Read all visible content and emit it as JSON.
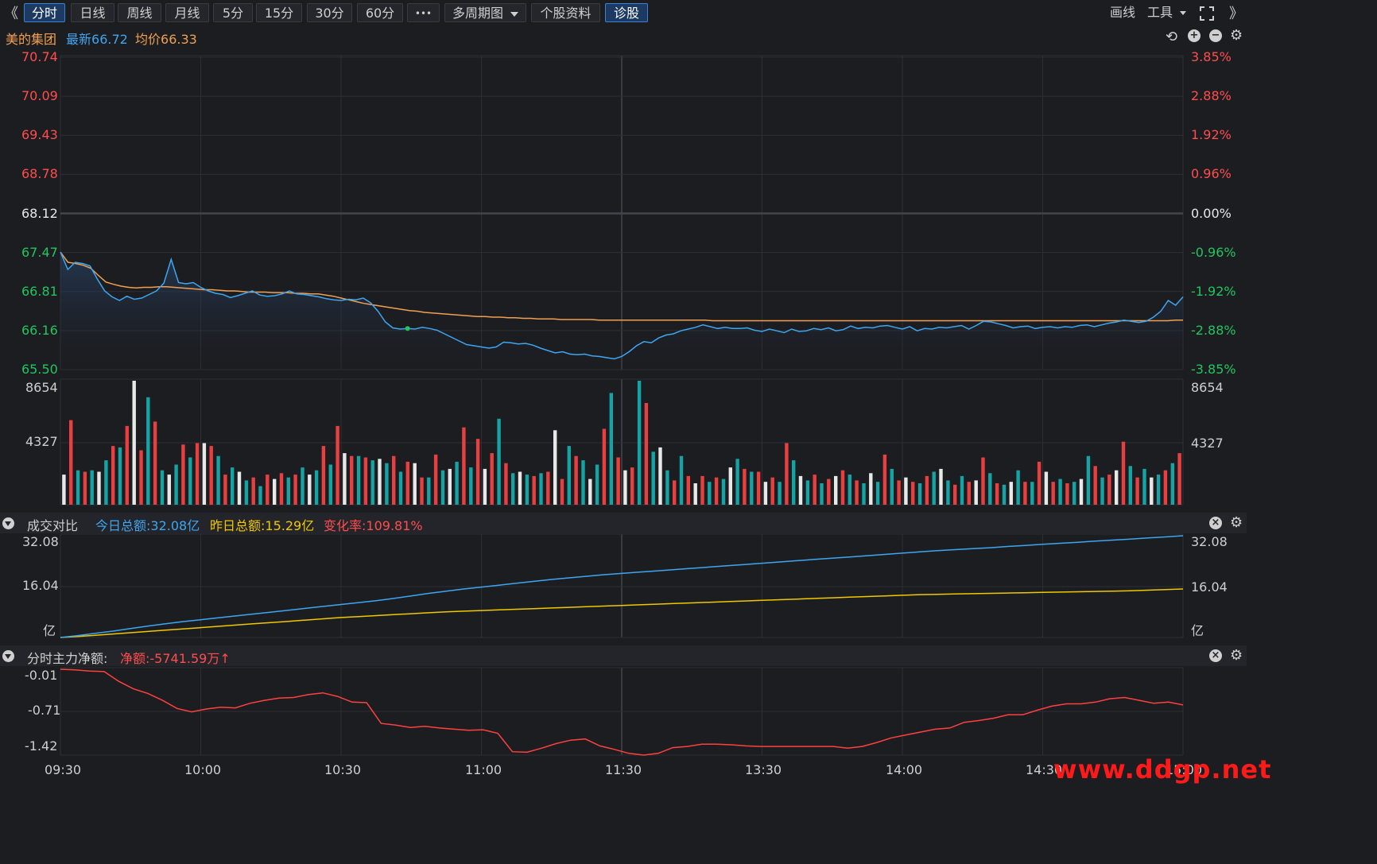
{
  "toolbar": {
    "collapse_left": "《",
    "expand_right": "》",
    "periods": [
      "分时",
      "日线",
      "周线",
      "月线",
      "5分",
      "15分",
      "30分",
      "60分"
    ],
    "active_period": "分时",
    "more": "•••",
    "multi_period": "多周期图",
    "stock_info": "个股资料",
    "diagnose": "诊股",
    "draw_line": "画线",
    "tools": "工具"
  },
  "header": {
    "stock_name": "美的集团",
    "latest_label": "最新",
    "latest_value": "66.72",
    "avg_label": "均价",
    "avg_value": "66.33"
  },
  "colors": {
    "up": "#ff4d4d",
    "down": "#22c55e",
    "price_line": "#3ea6f0",
    "avg_line": "#f0a050",
    "today_total": "#3ea6f0",
    "yesterday_total": "#f0c800",
    "net_flow": "#ff4040",
    "grid": "#2e2f35",
    "volume_up": "#e84040",
    "volume_down": "#16a3a3"
  },
  "icons": [
    "undo-icon",
    "zoom-in-icon",
    "zoom-out-icon",
    "settings-gear-icon",
    "close-circle-icon",
    "collapse-triangle-icon",
    "fullscreen-icon"
  ],
  "price_axis": {
    "left": [
      "70.74",
      "70.09",
      "69.43",
      "68.78",
      "68.12",
      "67.47",
      "66.81",
      "66.16",
      "65.50"
    ],
    "right": [
      "3.85%",
      "2.88%",
      "1.92%",
      "0.96%",
      "0.00%",
      "-0.96%",
      "-1.92%",
      "-2.88%",
      "-3.85%"
    ]
  },
  "volume_axis": {
    "left": [
      "8654",
      "4327"
    ],
    "right": [
      "8654",
      "4327"
    ]
  },
  "compare_panel": {
    "title": "成交对比",
    "today_label": "今日总额:",
    "today_value": "32.08亿",
    "yesterday_label": "昨日总额:",
    "yesterday_value": "15.29亿",
    "change_label": "变化率:",
    "change_value": "109.81%",
    "axis_left": [
      "32.08",
      "16.04",
      "亿"
    ],
    "axis_right": [
      "32.08",
      "16.04",
      "亿"
    ]
  },
  "flow_panel": {
    "title": "分时主力净额:",
    "net_label": "净额:",
    "net_value": "-5741.59万",
    "arrow": "↑",
    "axis": [
      "-0.01",
      "-0.71",
      "-1.42"
    ]
  },
  "time_axis": [
    "09:30",
    "10:00",
    "10:30",
    "11:00",
    "11:30",
    "13:30",
    "14:00",
    "14:30",
    "15:00"
  ],
  "watermark": "www.ddgp.net",
  "chart_data": [
    {
      "type": "line",
      "ylim": [
        65.5,
        70.74
      ],
      "series": [
        {
          "values": [
            67.47,
            67.18,
            67.3,
            67.28,
            67.24,
            67.02,
            66.82,
            66.72,
            66.66,
            66.73,
            66.68,
            66.7,
            66.76,
            66.82,
            66.95,
            67.35,
            66.96,
            66.94,
            66.96,
            66.88,
            66.82,
            66.78,
            66.76,
            66.71,
            66.74,
            66.78,
            66.82,
            66.75,
            66.73,
            66.74,
            66.77,
            66.82,
            66.77,
            66.76,
            66.74,
            66.72,
            66.69,
            66.67,
            66.66,
            66.68,
            66.67,
            66.7,
            66.62,
            66.48,
            66.3,
            66.2,
            66.18,
            66.19,
            66.18,
            66.21,
            66.19,
            66.16,
            66.1,
            66.04,
            65.98,
            65.92,
            65.9,
            65.88,
            65.86,
            65.88,
            65.96,
            65.95,
            65.93,
            65.94,
            65.91,
            65.86,
            65.82,
            65.78,
            65.8,
            65.76,
            65.75,
            65.76,
            65.73,
            65.72,
            65.7,
            65.68,
            65.72,
            65.8,
            65.9,
            65.97,
            65.95,
            66.03,
            66.08,
            66.1,
            66.15,
            66.18,
            66.21,
            66.25,
            66.22,
            66.19,
            66.21,
            66.19,
            66.19,
            66.2,
            66.16,
            66.14,
            66.18,
            66.15,
            66.12,
            66.18,
            66.14,
            66.15,
            66.19,
            66.17,
            66.2,
            66.15,
            66.17,
            66.23,
            66.19,
            66.21,
            66.2,
            66.23,
            66.24,
            66.21,
            66.18,
            66.22,
            66.15,
            66.19,
            66.18,
            66.21,
            66.2,
            66.22,
            66.24,
            66.18,
            66.24,
            66.31,
            66.3,
            66.27,
            66.24,
            66.2,
            66.22,
            66.23,
            66.19,
            66.21,
            66.22,
            66.2,
            66.22,
            66.21,
            66.24,
            66.25,
            66.22,
            66.25,
            66.28,
            66.3,
            66.33,
            66.31,
            66.29,
            66.31,
            66.38,
            66.48,
            66.66,
            66.58,
            66.72
          ]
        },
        {
          "values": [
            67.47,
            67.3,
            67.28,
            67.25,
            67.2,
            67.08,
            66.97,
            66.93,
            66.9,
            66.88,
            66.87,
            66.88,
            66.88,
            66.89,
            66.89,
            66.88,
            66.87,
            66.86,
            66.85,
            66.84,
            66.84,
            66.83,
            66.82,
            66.82,
            66.81,
            66.8,
            66.8,
            66.8,
            66.79,
            66.79,
            66.79,
            66.78,
            66.78,
            66.77,
            66.77,
            66.75,
            66.73,
            66.7,
            66.67,
            66.64,
            66.61,
            66.59,
            66.57,
            66.55,
            66.53,
            66.51,
            66.49,
            66.48,
            66.46,
            66.45,
            66.44,
            66.43,
            66.42,
            66.41,
            66.4,
            66.39,
            66.39,
            66.38,
            66.38,
            66.37,
            66.37,
            66.36,
            66.36,
            66.35,
            66.35,
            66.35,
            66.34,
            66.34,
            66.34,
            66.34,
            66.34,
            66.33,
            66.33,
            66.33,
            66.33,
            66.33,
            66.33,
            66.33,
            66.33,
            66.33,
            66.33,
            66.33,
            66.33,
            66.33,
            66.33,
            66.33,
            66.32,
            66.32,
            66.32,
            66.32,
            66.32,
            66.32,
            66.32,
            66.32,
            66.32,
            66.32,
            66.32,
            66.32,
            66.32,
            66.32,
            66.32,
            66.32,
            66.32,
            66.32,
            66.32,
            66.32,
            66.32,
            66.32,
            66.32,
            66.32,
            66.32,
            66.32,
            66.32,
            66.32,
            66.32,
            66.32,
            66.32,
            66.32,
            66.32,
            66.32,
            66.32,
            66.32,
            66.32,
            66.32,
            66.32,
            66.32,
            66.32,
            66.32,
            66.32,
            66.32,
            66.32,
            66.32,
            66.32,
            66.32,
            66.32,
            66.32,
            66.32,
            66.32,
            66.32,
            66.32,
            66.32,
            66.32,
            66.32,
            66.32,
            66.32,
            66.32,
            66.32,
            66.33,
            66.33
          ]
        }
      ]
    },
    {
      "type": "bar",
      "ylim": [
        0,
        8654
      ],
      "values": [
        2100,
        5900,
        2400,
        2300,
        2400,
        2300,
        3100,
        4100,
        4000,
        5500,
        8654,
        3800,
        7500,
        5800,
        2400,
        2100,
        2800,
        4200,
        3300,
        4300,
        4300,
        4100,
        3400,
        2100,
        2600,
        2300,
        1700,
        1900,
        1300,
        2100,
        1800,
        2200,
        1900,
        2100,
        2600,
        2100,
        2400,
        4100,
        2800,
        5500,
        3600,
        3400,
        3400,
        3300,
        3100,
        3200,
        2900,
        3400,
        2300,
        3000,
        2900,
        1900,
        1900,
        3500,
        2400,
        2500,
        3000,
        5400,
        2600,
        4600,
        2500,
        3600,
        6000,
        2900,
        2200,
        2300,
        2100,
        2000,
        2200,
        2300,
        5200,
        1800,
        4100,
        3400,
        3100,
        1800,
        2800,
        5300,
        7800,
        3300,
        2400,
        2600,
        8654,
        7100,
        3700,
        4000,
        2400,
        1700,
        3400,
        2000,
        1500,
        2000,
        1600,
        1900,
        1800,
        2600,
        3200,
        2500,
        2300,
        2300,
        1600,
        1900,
        1600,
        4300,
        3100,
        2000,
        1700,
        2100,
        1500,
        1800,
        2000,
        2400,
        2100,
        1700,
        1500,
        2200,
        1600,
        3500,
        2500,
        1700,
        1900,
        1600,
        1500,
        2000,
        2300,
        2500,
        1700,
        1400,
        2000,
        1600,
        1700,
        3300,
        2200,
        1500,
        1400,
        1600,
        2400,
        1600,
        1600,
        3000,
        2300,
        1600,
        1800,
        1500,
        1600,
        1800,
        3400,
        2700,
        1900,
        2100,
        2400,
        4400,
        2700,
        1900,
        2500,
        1900,
        2100,
        2400,
        2900,
        3600
      ]
    },
    {
      "type": "line",
      "ylim": [
        0,
        32.08
      ],
      "series": [
        {
          "values": [
            0.0,
            0.6,
            1.3,
            2.0,
            2.8,
            3.6,
            4.3,
            5.0,
            5.6,
            6.2,
            6.8,
            7.4,
            8.0,
            8.6,
            9.2,
            9.8,
            10.4,
            11.0,
            11.6,
            12.3,
            13.1,
            13.9,
            14.6,
            15.3,
            15.9,
            16.5,
            17.1,
            17.7,
            18.3,
            18.8,
            19.3,
            19.8,
            20.2,
            20.6,
            21.0,
            21.4,
            21.8,
            22.2,
            22.6,
            23.0,
            23.4,
            23.8,
            24.2,
            24.6,
            25.0,
            25.4,
            25.8,
            26.2,
            26.6,
            27.0,
            27.4,
            27.7,
            28.0,
            28.3,
            28.7,
            29.0,
            29.4,
            29.7,
            30.0,
            30.4,
            30.7,
            31.0,
            31.4,
            31.7,
            32.08
          ]
        },
        {
          "values": [
            0.0,
            0.3,
            0.7,
            1.1,
            1.5,
            1.9,
            2.3,
            2.7,
            3.1,
            3.5,
            3.9,
            4.3,
            4.7,
            5.1,
            5.5,
            5.9,
            6.3,
            6.6,
            6.9,
            7.2,
            7.5,
            7.8,
            8.1,
            8.3,
            8.5,
            8.7,
            8.9,
            9.1,
            9.3,
            9.5,
            9.7,
            9.9,
            10.1,
            10.3,
            10.5,
            10.7,
            10.9,
            11.1,
            11.3,
            11.5,
            11.7,
            11.9,
            12.1,
            12.3,
            12.5,
            12.7,
            12.9,
            13.1,
            13.3,
            13.5,
            13.6,
            13.7,
            13.8,
            13.9,
            14.0,
            14.1,
            14.2,
            14.3,
            14.4,
            14.5,
            14.6,
            14.7,
            14.9,
            15.1,
            15.29
          ]
        }
      ]
    },
    {
      "type": "line",
      "ylim": [
        -1.5,
        -0.01
      ],
      "series": [
        {
          "values": [
            -0.01,
            -0.02,
            -0.04,
            -0.05,
            -0.22,
            -0.35,
            -0.43,
            -0.55,
            -0.69,
            -0.75,
            -0.7,
            -0.67,
            -0.68,
            -0.6,
            -0.55,
            -0.51,
            -0.5,
            -0.45,
            -0.42,
            -0.48,
            -0.58,
            -0.59,
            -0.95,
            -0.98,
            -1.02,
            -1.0,
            -1.03,
            -1.05,
            -1.07,
            -1.06,
            -1.12,
            -1.44,
            -1.45,
            -1.38,
            -1.3,
            -1.24,
            -1.22,
            -1.34,
            -1.4,
            -1.47,
            -1.5,
            -1.47,
            -1.37,
            -1.35,
            -1.31,
            -1.31,
            -1.32,
            -1.34,
            -1.35,
            -1.35,
            -1.35,
            -1.35,
            -1.35,
            -1.35,
            -1.38,
            -1.35,
            -1.28,
            -1.2,
            -1.15,
            -1.1,
            -1.05,
            -1.03,
            -0.93,
            -0.9,
            -0.86,
            -0.8,
            -0.8,
            -0.72,
            -0.65,
            -0.61,
            -0.61,
            -0.58,
            -0.52,
            -0.5,
            -0.55,
            -0.6,
            -0.58,
            -0.63
          ]
        }
      ]
    }
  ]
}
